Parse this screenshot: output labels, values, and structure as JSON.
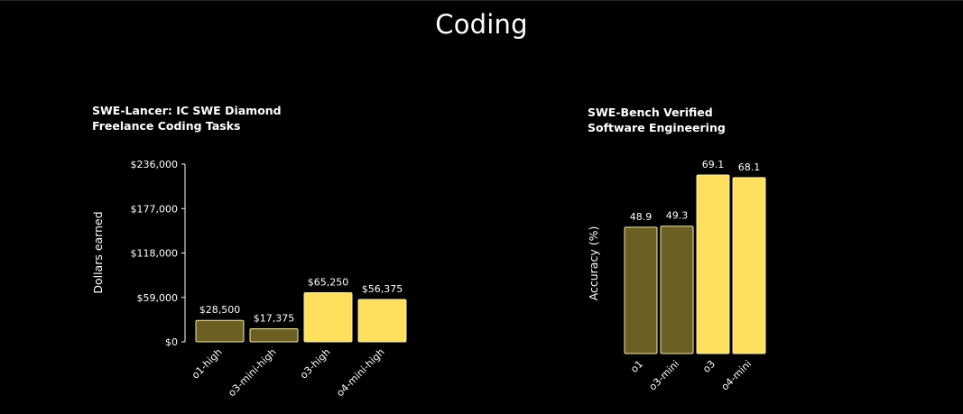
{
  "page": {
    "title": "Coding"
  },
  "colors": {
    "background": "#000000",
    "bar_dark": "#6b5f23",
    "bar_light": "#ffdf5e",
    "bar_stroke": "#f5e9b0",
    "text": "#ffffff"
  },
  "chart_data": [
    {
      "type": "bar",
      "title": "SWE-Lancer: IC SWE Diamond",
      "subtitle": "Freelance Coding Tasks",
      "ylabel": "Dollars earned",
      "categories": [
        "o1-high",
        "o3-mini-high",
        "o3-high",
        "o4-mini-high"
      ],
      "values": [
        28500,
        17375,
        65250,
        56375
      ],
      "value_labels": [
        "$28,500",
        "$17,375",
        "$65,250",
        "$56,375"
      ],
      "bar_styles": [
        "dark",
        "dark",
        "light",
        "light"
      ],
      "yticks": [
        0,
        59000,
        118000,
        177000,
        236000
      ],
      "ytick_labels": [
        "$0",
        "$59,000",
        "$118,000",
        "$177,000",
        "$236,000"
      ],
      "ylim": [
        0,
        236000
      ],
      "grid": false,
      "legend": "none"
    },
    {
      "type": "bar",
      "title": "SWE-Bench Verified",
      "subtitle": "Software Engineering",
      "ylabel": "Accuracy (%)",
      "categories": [
        "o1",
        "o3-mini",
        "o3",
        "o4-mini"
      ],
      "values": [
        48.9,
        49.3,
        69.1,
        68.1
      ],
      "value_labels": [
        "48.9",
        "49.3",
        "69.1",
        "68.1"
      ],
      "bar_styles": [
        "dark",
        "dark",
        "light",
        "light"
      ],
      "ylim": [
        0,
        69.1
      ],
      "grid": false,
      "legend": "none"
    }
  ]
}
